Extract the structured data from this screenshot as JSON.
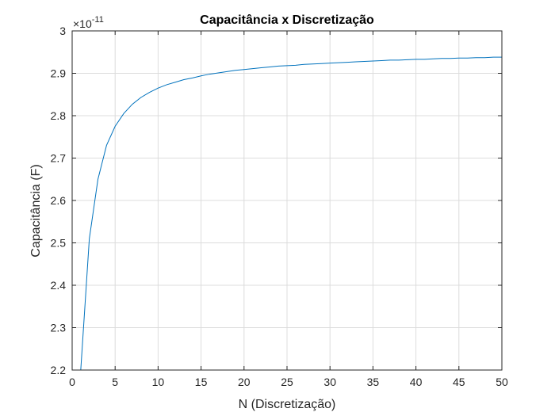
{
  "chart_data": {
    "type": "line",
    "title": "Capacitância x Discretização",
    "xlabel": "N (Discretização)",
    "ylabel": "Capacitância (F)",
    "xlim": [
      0,
      50
    ],
    "ylim": [
      2.2,
      3.0
    ],
    "y_multiplier": "×10",
    "y_exponent": "-11",
    "xticks": [
      "0",
      "5",
      "10",
      "15",
      "20",
      "25",
      "30",
      "35",
      "40",
      "45",
      "50"
    ],
    "yticks": [
      "2.2",
      "2.3",
      "2.4",
      "2.5",
      "2.6",
      "2.7",
      "2.8",
      "2.9",
      "3"
    ],
    "grid": true,
    "line_color": "#0072BD",
    "series": [
      {
        "x": [
          1,
          2,
          3,
          4,
          5,
          6,
          7,
          8,
          9,
          10,
          11,
          12,
          13,
          14,
          15,
          16,
          17,
          18,
          19,
          20,
          21,
          22,
          23,
          24,
          25,
          26,
          27,
          28,
          29,
          30,
          31,
          32,
          33,
          34,
          35,
          36,
          37,
          38,
          39,
          40,
          41,
          42,
          43,
          44,
          45,
          46,
          47,
          48,
          49,
          50
        ],
        "values": [
          2.2,
          2.51,
          2.65,
          2.73,
          2.775,
          2.805,
          2.827,
          2.843,
          2.855,
          2.865,
          2.873,
          2.879,
          2.885,
          2.889,
          2.894,
          2.898,
          2.901,
          2.904,
          2.907,
          2.909,
          2.911,
          2.913,
          2.915,
          2.917,
          2.918,
          2.919,
          2.921,
          2.922,
          2.923,
          2.924,
          2.925,
          2.926,
          2.927,
          2.928,
          2.929,
          2.93,
          2.931,
          2.931,
          2.932,
          2.933,
          2.933,
          2.934,
          2.935,
          2.935,
          2.936,
          2.936,
          2.937,
          2.937,
          2.938,
          2.938
        ]
      }
    ]
  }
}
